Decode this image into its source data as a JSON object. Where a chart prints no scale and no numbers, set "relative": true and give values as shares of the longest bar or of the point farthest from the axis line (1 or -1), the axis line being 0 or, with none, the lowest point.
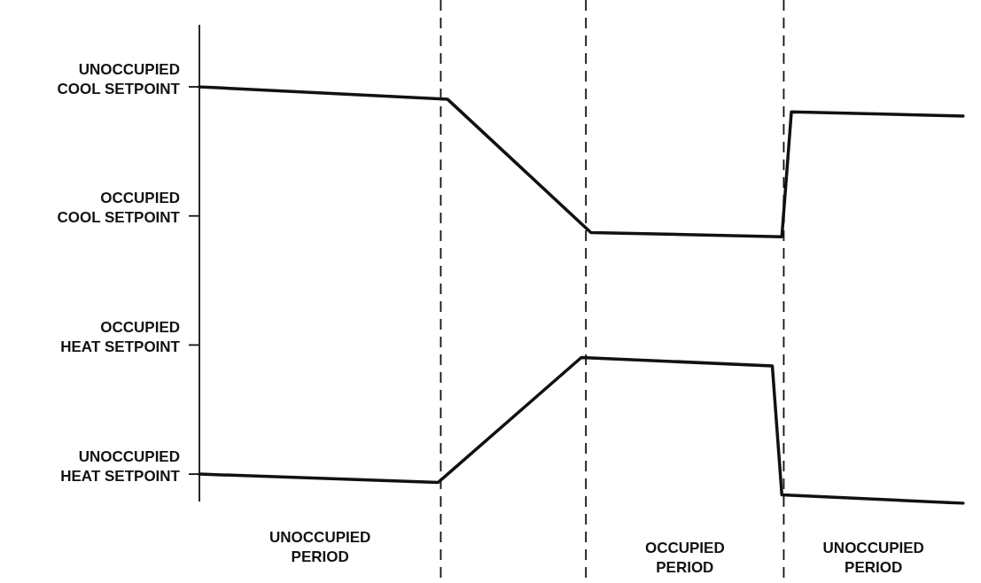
{
  "chart_data": {
    "type": "line",
    "relative": true,
    "tick_labels": false,
    "grid": false,
    "legend": false,
    "marker": "none",
    "line_style": "solid",
    "categories": [
      null,
      null,
      null,
      null,
      null,
      null,
      null,
      null,
      null,
      null,
      null,
      null,
      null,
      null,
      null,
      null,
      null,
      null,
      null,
      null,
      null,
      null,
      null,
      null,
      null,
      null,
      null,
      null,
      null,
      null,
      null,
      null,
      null,
      null,
      null,
      null,
      null,
      null,
      null,
      null,
      null,
      null,
      null,
      null,
      null,
      null,
      null,
      null,
      null,
      null,
      null,
      null,
      null,
      null,
      null,
      null,
      null,
      null,
      null,
      null,
      null,
      null,
      null,
      null,
      null,
      null,
      null,
      null,
      null,
      null,
      null,
      null,
      null,
      null,
      null,
      null,
      null,
      null,
      null,
      null,
      null
    ],
    "series": [
      {
        "color": "#111111",
        "values": [
          1,
          null,
          null,
          null,
          null,
          null,
          null,
          null,
          null,
          null,
          null,
          null,
          null,
          null,
          null,
          null,
          null,
          null,
          null,
          null,
          null,
          null,
          null,
          null,
          null,
          null,
          0.97,
          null,
          null,
          null,
          null,
          null,
          null,
          null,
          null,
          null,
          null,
          null,
          null,
          null,
          null,
          0.65,
          null,
          null,
          null,
          null,
          null,
          null,
          null,
          null,
          null,
          null,
          null,
          null,
          null,
          null,
          null,
          null,
          null,
          null,
          null,
          0.64,
          0.94,
          null,
          null,
          null,
          null,
          null,
          null,
          null,
          null,
          null,
          null,
          null,
          null,
          null,
          null,
          null,
          null,
          null,
          0.93
        ]
      },
      {
        "color": "#111111",
        "values": [
          0.07,
          null,
          null,
          null,
          null,
          null,
          null,
          null,
          null,
          null,
          null,
          null,
          null,
          null,
          null,
          null,
          null,
          null,
          null,
          null,
          null,
          null,
          null,
          null,
          null,
          0.05,
          null,
          null,
          null,
          null,
          null,
          null,
          null,
          null,
          null,
          null,
          null,
          null,
          null,
          null,
          0.35,
          null,
          null,
          null,
          null,
          null,
          null,
          null,
          null,
          null,
          null,
          null,
          null,
          null,
          null,
          null,
          null,
          null,
          null,
          null,
          0.33,
          0.02,
          null,
          null,
          null,
          null,
          null,
          null,
          null,
          null,
          null,
          null,
          null,
          null,
          null,
          null,
          null,
          null,
          null,
          null,
          0
        ]
      }
    ],
    "annotations": [
      "UNOCCUPIED COOL SETPOINT",
      "OCCUPIED COOL SETPOINT",
      "OCCUPIED HEAT SETPOINT",
      "UNOCCUPIED HEAT SETPOINT",
      "UNOCCUPIED PERIOD",
      "OCCUPIED PERIOD",
      "UNOCCUPIED PERIOD"
    ]
  }
}
